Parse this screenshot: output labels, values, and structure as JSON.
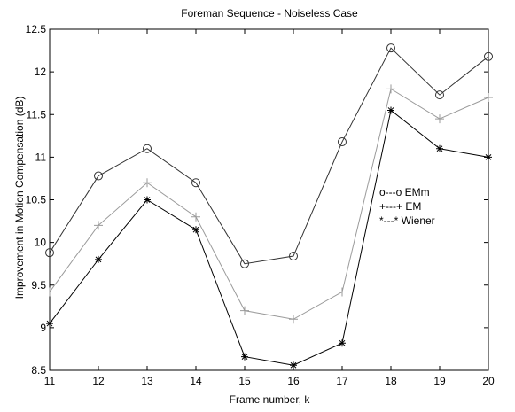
{
  "chart_data": {
    "type": "line",
    "title": "Foreman Sequence - Noiseless Case",
    "xlabel": "Frame number, k",
    "ylabel": "Improvement in Motion Compensation (dB)",
    "xlim": [
      11,
      20
    ],
    "ylim": [
      8.5,
      12.5
    ],
    "xticks": [
      "11",
      "12",
      "13",
      "14",
      "15",
      "16",
      "17",
      "18",
      "19",
      "20"
    ],
    "yticks": [
      "8.5",
      "9",
      "9.5",
      "10",
      "10.5",
      "11",
      "11.5",
      "12",
      "12.5"
    ],
    "grid": false,
    "legend_placement": "right",
    "x": [
      11,
      12,
      13,
      14,
      15,
      16,
      17,
      18,
      19,
      20
    ],
    "series": [
      {
        "name": "o---o EMm",
        "marker": "circle",
        "color": "#333333",
        "values": [
          9.88,
          10.78,
          11.1,
          10.7,
          9.75,
          9.84,
          11.18,
          12.28,
          11.73,
          12.18
        ]
      },
      {
        "name": "+---+ EM",
        "marker": "plus",
        "color": "#9a9a9a",
        "values": [
          9.42,
          10.2,
          10.7,
          10.3,
          9.2,
          9.1,
          9.42,
          11.8,
          11.45,
          11.7
        ]
      },
      {
        "name": "*---* Wiener",
        "marker": "star",
        "color": "#000000",
        "values": [
          9.05,
          9.8,
          10.5,
          10.15,
          8.66,
          8.56,
          8.82,
          11.55,
          11.1,
          11.0
        ]
      }
    ]
  }
}
